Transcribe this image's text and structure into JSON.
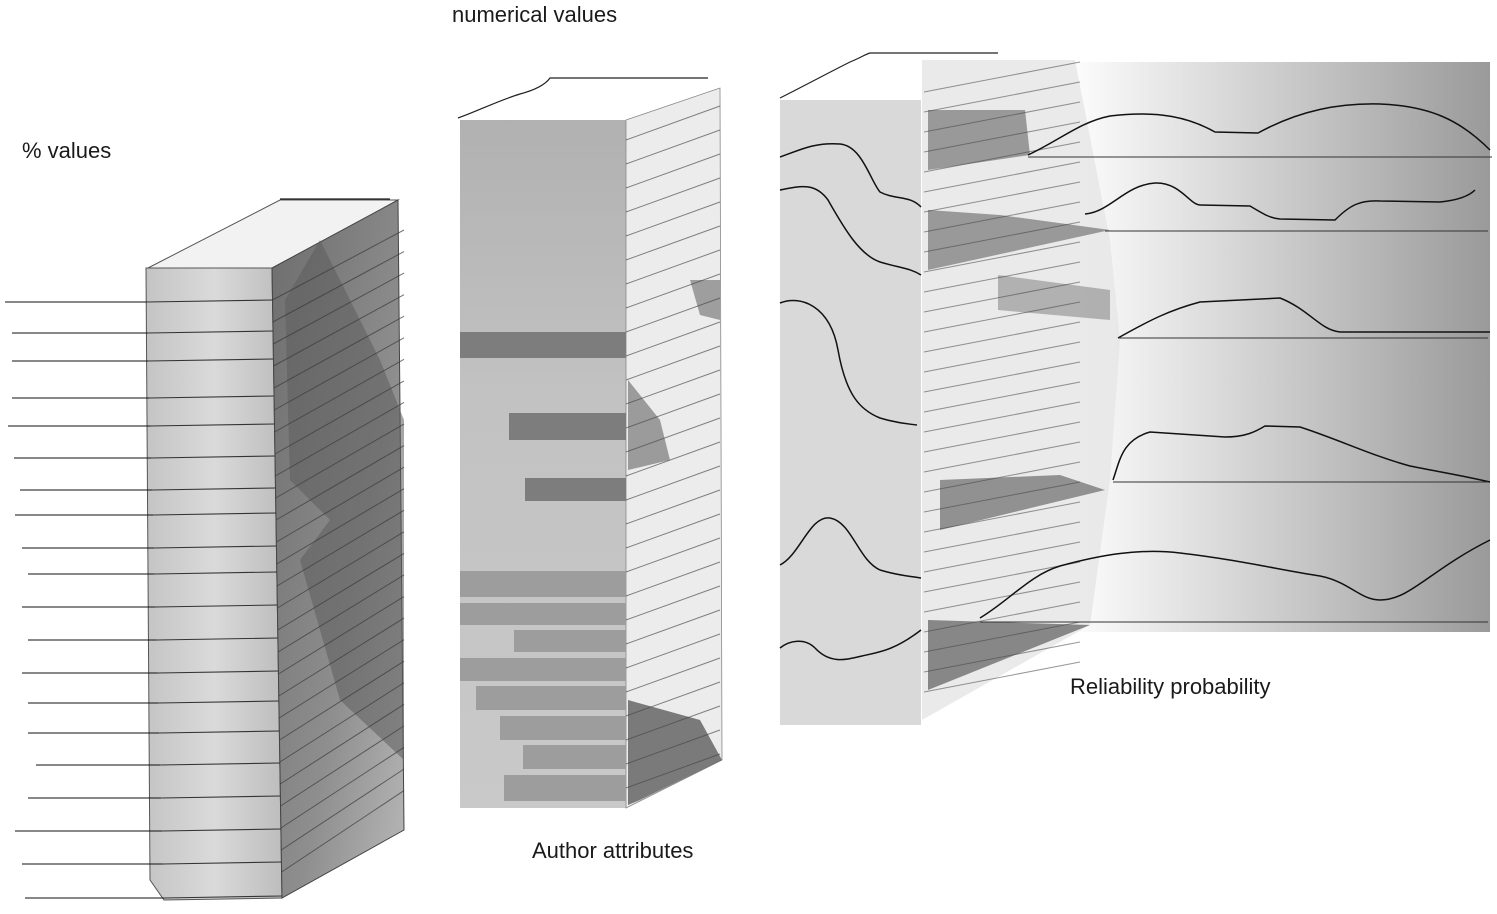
{
  "labels": {
    "percent_values": "% values",
    "numerical_values": "numerical values",
    "author_attributes": "Author attributes",
    "reliability_probability": "Reliability probability"
  },
  "colors": {
    "ink": "#1a1a1a",
    "bar_light": "#b3b3b3",
    "bar_dark": "#7a7a7a",
    "panel": "#d9d9d9",
    "gradient_end": "#9a9a9a"
  }
}
